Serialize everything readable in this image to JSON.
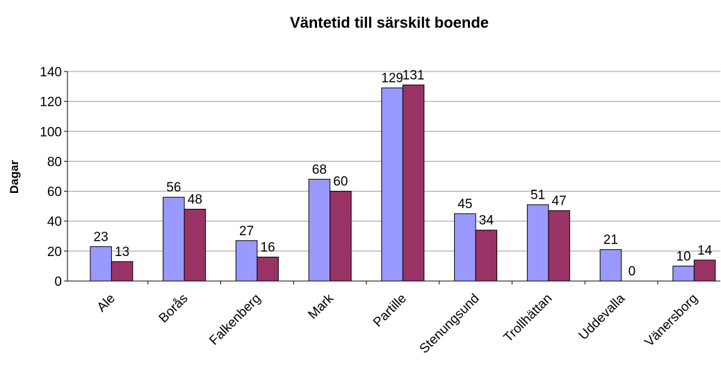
{
  "chart_data": {
    "type": "bar",
    "title": "Väntetid till särskilt boende",
    "y_label": "Dagar",
    "categories": [
      "Ale",
      "Borås",
      "Falkenberg",
      "Mark",
      "Partille",
      "Stenungsund",
      "Trollhättan",
      "Uddevalla",
      "Vänersborg"
    ],
    "series": [
      {
        "color": "#9999ff",
        "values": [
          23,
          56,
          27,
          68,
          129,
          45,
          51,
          21,
          10
        ]
      },
      {
        "color": "#993366",
        "values": [
          13,
          48,
          16,
          60,
          131,
          34,
          47,
          0,
          14
        ]
      }
    ],
    "ylim": [
      0,
      140
    ],
    "yticks": [
      0,
      20,
      40,
      60,
      80,
      100,
      120,
      140
    ],
    "grid": true
  }
}
